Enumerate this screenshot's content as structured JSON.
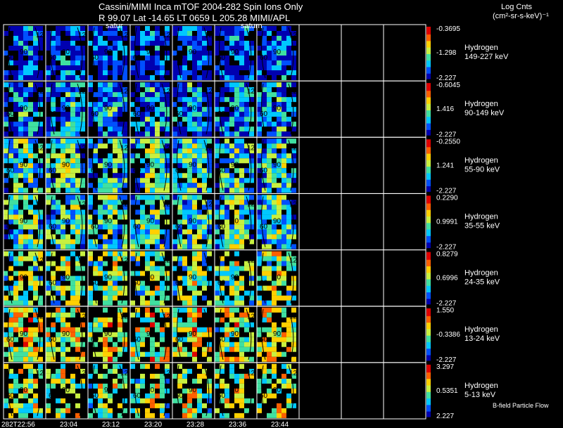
{
  "header": {
    "title": "Cassini/MIMI Inca mTOF  2004-282   Spin   Ions Only",
    "subtitle": "R          99.07 Lat -14.65 LT 0659 L          205.28  MIMI/APL",
    "legend_title_1": "Log Cnts",
    "legend_title_2": "(cm²-sr-s-keV)⁻¹",
    "saturn_labels": [
      "satur",
      "saturn"
    ]
  },
  "colors": {
    "background": "#000000",
    "grid_lines": "#ffffff",
    "colormap": [
      "#0000b0",
      "#0050ff",
      "#00c8ff",
      "#40e0a0",
      "#c8f040",
      "#ffd000",
      "#ff6000",
      "#e00000"
    ]
  },
  "panels": [
    {
      "species": "Hydrogen",
      "energy": "149-227 keV",
      "cmax": "-0.3695",
      "cmid": "-1.298",
      "cmin": "-2.227",
      "fill": 0.85,
      "level": 0.18
    },
    {
      "species": "Hydrogen",
      "energy": "90-149 keV",
      "cmax": "-0.6045",
      "cmid": "1.416",
      "cmin": "-2.227",
      "fill": 0.9,
      "level": 0.3
    },
    {
      "species": "Hydrogen",
      "energy": "55-90 keV",
      "cmax": "-0.2550",
      "cmid": "1.241",
      "cmin": "-2.227",
      "fill": 0.88,
      "level": 0.42
    },
    {
      "species": "Hydrogen",
      "energy": "35-55 keV",
      "cmax": "0.2290",
      "cmid": "0.9991",
      "cmin": "-2.227",
      "fill": 0.86,
      "level": 0.45
    },
    {
      "species": "Hydrogen",
      "energy": "24-35 keV",
      "cmax": "0.8279",
      "cmid": "0.6996",
      "cmin": "-2.227",
      "fill": 0.7,
      "level": 0.55
    },
    {
      "species": "Hydrogen",
      "energy": "13-24 keV",
      "cmax": "1.550",
      "cmid": "-0.3386",
      "cmin": "-2.227",
      "fill": 0.72,
      "level": 0.65
    },
    {
      "species": "Hydrogen",
      "energy": "5-13 keV",
      "cmax": "3.297",
      "cmid": "0.5351",
      "cmin": "2.227",
      "fill": 0.55,
      "level": 0.6
    }
  ],
  "time_labels": [
    "282T22:56",
    "23:04",
    "23:12",
    "23:20",
    "23:28",
    "23:36",
    "23:44"
  ],
  "active_columns": 7,
  "total_columns": 10,
  "pitch_angle_labels": [
    "60",
    "90",
    "12"
  ],
  "footer": "B-field Particle Flow"
}
